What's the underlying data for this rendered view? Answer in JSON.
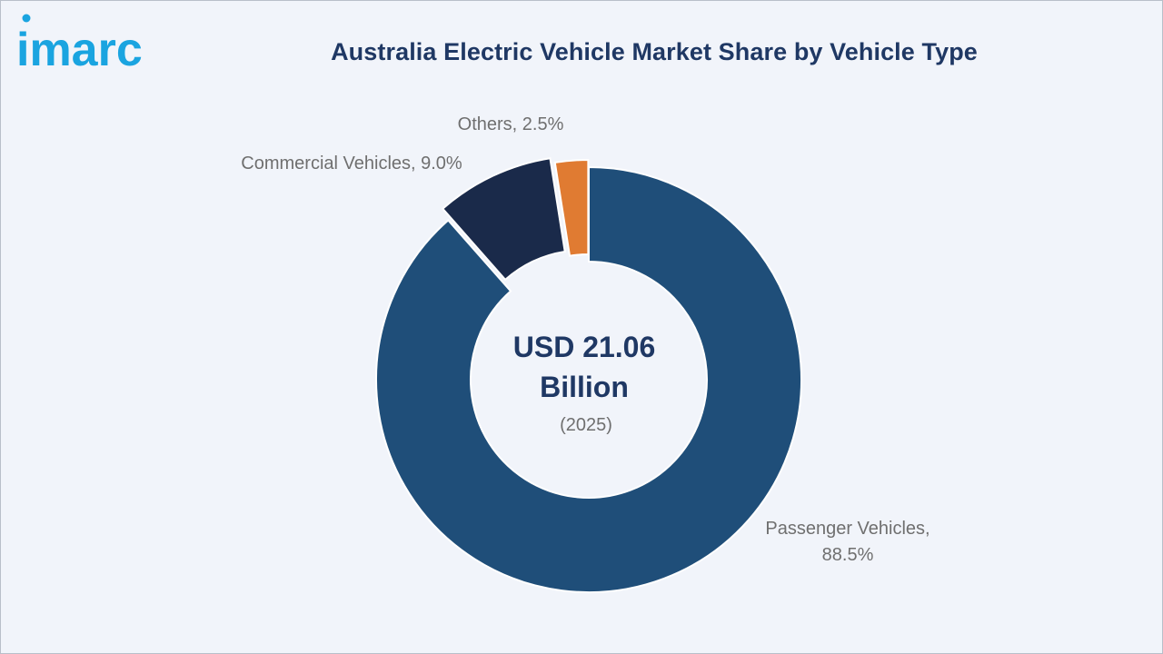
{
  "logo_text": "imarc",
  "colors": {
    "passenger": "#1f4e79",
    "commercial": "#1a2a4a",
    "others": "#e07b32",
    "title": "#1f3864",
    "logo": "#1aa4e0"
  },
  "chart_data": {
    "type": "pie",
    "title": "Australia Electric Vehicle Market Share by Vehicle Type",
    "unit": "%",
    "slices": [
      {
        "label": "Passenger Vehicles",
        "value": 88.5,
        "display": "Passenger Vehicles,",
        "display2": "88.5%",
        "color": "#1f4e79"
      },
      {
        "label": "Commercial Vehicles",
        "value": 9.0,
        "display": "Commercial Vehicles, 9.0%",
        "color": "#1a2a4a"
      },
      {
        "label": "Others",
        "value": 2.5,
        "display": "Others, 2.5%",
        "color": "#e07b32"
      }
    ],
    "center_text": {
      "line1": "USD 21.06",
      "line2": "Billion",
      "year": "(2025)"
    }
  }
}
